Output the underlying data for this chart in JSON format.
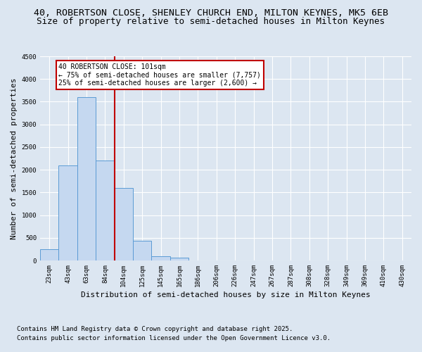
{
  "title_line1": "40, ROBERTSON CLOSE, SHENLEY CHURCH END, MILTON KEYNES, MK5 6EB",
  "title_line2": "Size of property relative to semi-detached houses in Milton Keynes",
  "xlabel": "Distribution of semi-detached houses by size in Milton Keynes",
  "ylabel": "Number of semi-detached properties",
  "categories": [
    "23sqm",
    "43sqm",
    "63sqm",
    "84sqm",
    "104sqm",
    "125sqm",
    "145sqm",
    "165sqm",
    "186sqm",
    "206sqm",
    "226sqm",
    "247sqm",
    "267sqm",
    "287sqm",
    "308sqm",
    "328sqm",
    "349sqm",
    "369sqm",
    "410sqm",
    "430sqm"
  ],
  "values": [
    250,
    2100,
    3600,
    2200,
    1600,
    430,
    100,
    60,
    0,
    0,
    0,
    0,
    0,
    0,
    0,
    0,
    0,
    0,
    0,
    0
  ],
  "bar_color": "#c5d8f0",
  "bar_edge_color": "#5b9bd5",
  "vline_color": "#c00000",
  "annotation_text": "40 ROBERTSON CLOSE: 101sqm\n← 75% of semi-detached houses are smaller (7,757)\n25% of semi-detached houses are larger (2,600) →",
  "annotation_box_color": "#c00000",
  "ylim": [
    0,
    4500
  ],
  "yticks": [
    0,
    500,
    1000,
    1500,
    2000,
    2500,
    3000,
    3500,
    4000,
    4500
  ],
  "background_color": "#dce6f1",
  "plot_bg_color": "#dce6f1",
  "grid_color": "#ffffff",
  "footer_line1": "Contains HM Land Registry data © Crown copyright and database right 2025.",
  "footer_line2": "Contains public sector information licensed under the Open Government Licence v3.0.",
  "title_fontsize": 9.5,
  "subtitle_fontsize": 9,
  "tick_fontsize": 6.5,
  "label_fontsize": 8,
  "footer_fontsize": 6.5,
  "annot_fontsize": 7
}
